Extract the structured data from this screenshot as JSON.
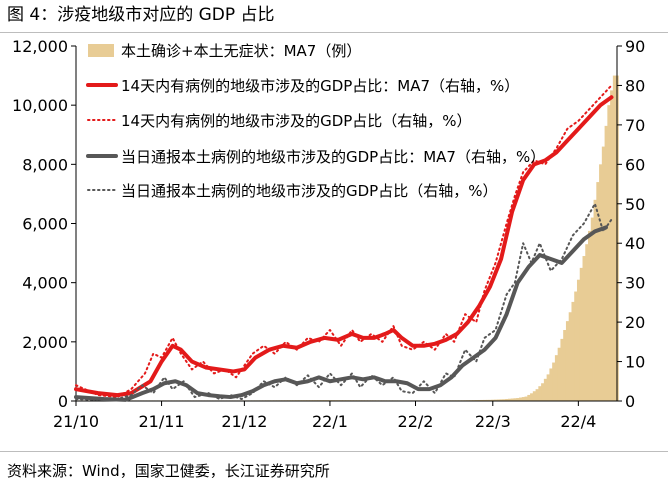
{
  "title": "图 4：涉疫地级市对应的 GDP 占比",
  "source": "资料来源：Wind，国家卫健委，长江证券研究所",
  "chart_data": {
    "type": "line",
    "x_labels": [
      "21/10",
      "21/11",
      "21/12",
      "22/1",
      "22/2",
      "22/3",
      "22/4"
    ],
    "x_range": [
      0,
      196
    ],
    "x_label_positions": [
      0,
      31,
      61,
      92,
      123,
      151,
      182
    ],
    "y_left": {
      "range": [
        0,
        12000
      ],
      "ticks": [
        "0",
        "2,000",
        "4,000",
        "6,000",
        "8,000",
        "10,000",
        "12,000"
      ]
    },
    "y_right": {
      "range": [
        0,
        90
      ],
      "ticks": [
        "0",
        "10",
        "20",
        "30",
        "40",
        "50",
        "60",
        "70",
        "80",
        "90"
      ]
    },
    "legend": {
      "placement": "top-left"
    },
    "series": [
      {
        "name": "本土确诊+本土无症状：MA7（例）",
        "style": "bar",
        "axis": "left",
        "color": "#e8cc95",
        "points": [
          [
            0,
            20
          ],
          [
            60,
            20
          ],
          [
            90,
            30
          ],
          [
            120,
            20
          ],
          [
            140,
            25
          ],
          [
            150,
            40
          ],
          [
            155,
            60
          ],
          [
            160,
            100
          ],
          [
            163,
            150
          ],
          [
            165,
            260
          ],
          [
            167,
            400
          ],
          [
            169,
            600
          ],
          [
            171,
            900
          ],
          [
            173,
            1300
          ],
          [
            175,
            1800
          ],
          [
            177,
            2400
          ],
          [
            179,
            3000
          ],
          [
            181,
            3700
          ],
          [
            183,
            4500
          ],
          [
            185,
            5300
          ],
          [
            187,
            6200
          ],
          [
            189,
            7400
          ],
          [
            191,
            8600
          ],
          [
            193,
            10000
          ],
          [
            195,
            11000
          ]
        ]
      },
      {
        "name": "14天内有病例的地级市涉及的GDP占比：MA7（右轴，%）",
        "style": "solid",
        "width": 4,
        "axis": "right",
        "color": "#e31a1a",
        "points": [
          [
            0,
            3
          ],
          [
            8,
            2
          ],
          [
            15,
            1.5
          ],
          [
            20,
            2
          ],
          [
            27,
            5
          ],
          [
            31,
            10
          ],
          [
            35,
            14
          ],
          [
            38,
            13
          ],
          [
            42,
            10
          ],
          [
            47,
            8.5
          ],
          [
            52,
            8
          ],
          [
            57,
            7.5
          ],
          [
            61,
            8
          ],
          [
            65,
            11
          ],
          [
            70,
            13
          ],
          [
            75,
            14
          ],
          [
            80,
            13.5
          ],
          [
            85,
            15
          ],
          [
            90,
            16
          ],
          [
            95,
            15.5
          ],
          [
            100,
            17
          ],
          [
            104,
            16
          ],
          [
            108,
            16
          ],
          [
            112,
            17
          ],
          [
            115,
            18
          ],
          [
            118,
            16
          ],
          [
            122,
            14
          ],
          [
            126,
            14
          ],
          [
            130,
            14.5
          ],
          [
            134,
            15.5
          ],
          [
            138,
            17
          ],
          [
            142,
            20
          ],
          [
            146,
            24
          ],
          [
            150,
            29
          ],
          [
            154,
            36
          ],
          [
            158,
            48
          ],
          [
            162,
            56
          ],
          [
            166,
            60
          ],
          [
            170,
            61
          ],
          [
            174,
            63
          ],
          [
            178,
            66
          ],
          [
            182,
            69
          ],
          [
            186,
            72
          ],
          [
            190,
            75
          ],
          [
            194,
            77
          ]
        ]
      },
      {
        "name": "14天内有病例的地级市涉及的GDP占比（右轴，%）",
        "style": "dotted",
        "width": 2,
        "axis": "right",
        "color": "#e31a1a",
        "points": [
          [
            0,
            4
          ],
          [
            8,
            1.5
          ],
          [
            15,
            1
          ],
          [
            20,
            3
          ],
          [
            25,
            7
          ],
          [
            28,
            12
          ],
          [
            31,
            11
          ],
          [
            35,
            16
          ],
          [
            38,
            12
          ],
          [
            42,
            8
          ],
          [
            46,
            10
          ],
          [
            50,
            7
          ],
          [
            54,
            8
          ],
          [
            58,
            6
          ],
          [
            61,
            9
          ],
          [
            64,
            12
          ],
          [
            68,
            14
          ],
          [
            72,
            12
          ],
          [
            76,
            15
          ],
          [
            80,
            13
          ],
          [
            84,
            16
          ],
          [
            88,
            15
          ],
          [
            92,
            18
          ],
          [
            96,
            14
          ],
          [
            100,
            18
          ],
          [
            103,
            15
          ],
          [
            107,
            17
          ],
          [
            111,
            15
          ],
          [
            115,
            19
          ],
          [
            118,
            14
          ],
          [
            122,
            13
          ],
          [
            126,
            15
          ],
          [
            130,
            13
          ],
          [
            134,
            17
          ],
          [
            137,
            15
          ],
          [
            141,
            22
          ],
          [
            145,
            20
          ],
          [
            148,
            28
          ],
          [
            152,
            35
          ],
          [
            156,
            45
          ],
          [
            159,
            52
          ],
          [
            162,
            58
          ],
          [
            166,
            61
          ],
          [
            170,
            60
          ],
          [
            174,
            64
          ],
          [
            178,
            69
          ],
          [
            182,
            71
          ],
          [
            186,
            74
          ],
          [
            190,
            77
          ],
          [
            194,
            80
          ]
        ]
      },
      {
        "name": "当日通报本土病例的地级市涉及的GDP占比：MA7（右轴，%）",
        "style": "solid",
        "width": 4,
        "axis": "right",
        "color": "#575757",
        "points": [
          [
            0,
            1
          ],
          [
            10,
            0.5
          ],
          [
            18,
            0.3
          ],
          [
            24,
            2
          ],
          [
            28,
            3
          ],
          [
            32,
            4.5
          ],
          [
            36,
            5
          ],
          [
            40,
            4
          ],
          [
            44,
            2
          ],
          [
            48,
            1.5
          ],
          [
            52,
            1.2
          ],
          [
            56,
            1
          ],
          [
            60,
            1.5
          ],
          [
            64,
            2.5
          ],
          [
            68,
            4
          ],
          [
            72,
            5
          ],
          [
            76,
            5.5
          ],
          [
            80,
            4.5
          ],
          [
            84,
            5
          ],
          [
            88,
            6
          ],
          [
            92,
            5
          ],
          [
            96,
            5.5
          ],
          [
            100,
            6
          ],
          [
            104,
            5.5
          ],
          [
            108,
            6
          ],
          [
            112,
            5
          ],
          [
            116,
            5
          ],
          [
            120,
            4.5
          ],
          [
            124,
            3
          ],
          [
            128,
            3
          ],
          [
            132,
            4
          ],
          [
            136,
            6
          ],
          [
            140,
            9
          ],
          [
            144,
            11
          ],
          [
            148,
            13
          ],
          [
            152,
            16
          ],
          [
            156,
            22
          ],
          [
            160,
            30
          ],
          [
            164,
            34
          ],
          [
            168,
            37
          ],
          [
            172,
            36
          ],
          [
            176,
            35
          ],
          [
            180,
            38
          ],
          [
            184,
            41
          ],
          [
            188,
            43
          ],
          [
            192,
            44
          ]
        ]
      },
      {
        "name": "当日通报本土病例的地级市涉及的GDP占比（右轴，%）",
        "style": "dotted",
        "width": 2,
        "axis": "right",
        "color": "#575757",
        "points": [
          [
            0,
            0.5
          ],
          [
            8,
            0.3
          ],
          [
            15,
            0.5
          ],
          [
            20,
            1.5
          ],
          [
            24,
            4
          ],
          [
            28,
            2
          ],
          [
            32,
            6
          ],
          [
            35,
            3
          ],
          [
            39,
            5
          ],
          [
            43,
            1
          ],
          [
            48,
            2
          ],
          [
            52,
            0.5
          ],
          [
            56,
            1.5
          ],
          [
            60,
            0.5
          ],
          [
            64,
            2
          ],
          [
            68,
            5
          ],
          [
            72,
            3.5
          ],
          [
            76,
            6
          ],
          [
            80,
            4
          ],
          [
            84,
            6.5
          ],
          [
            88,
            3.5
          ],
          [
            92,
            7
          ],
          [
            96,
            4
          ],
          [
            100,
            7
          ],
          [
            103,
            3.5
          ],
          [
            107,
            6.5
          ],
          [
            111,
            4
          ],
          [
            115,
            6
          ],
          [
            118,
            2.5
          ],
          [
            122,
            2
          ],
          [
            126,
            5
          ],
          [
            130,
            2
          ],
          [
            134,
            7
          ],
          [
            137,
            6
          ],
          [
            141,
            13
          ],
          [
            145,
            10
          ],
          [
            148,
            16
          ],
          [
            152,
            18
          ],
          [
            156,
            27
          ],
          [
            159,
            30
          ],
          [
            162,
            40
          ],
          [
            165,
            35
          ],
          [
            168,
            40
          ],
          [
            172,
            33
          ],
          [
            176,
            36
          ],
          [
            180,
            42
          ],
          [
            184,
            45
          ],
          [
            188,
            50
          ],
          [
            191,
            43
          ],
          [
            194,
            46
          ]
        ]
      }
    ]
  }
}
